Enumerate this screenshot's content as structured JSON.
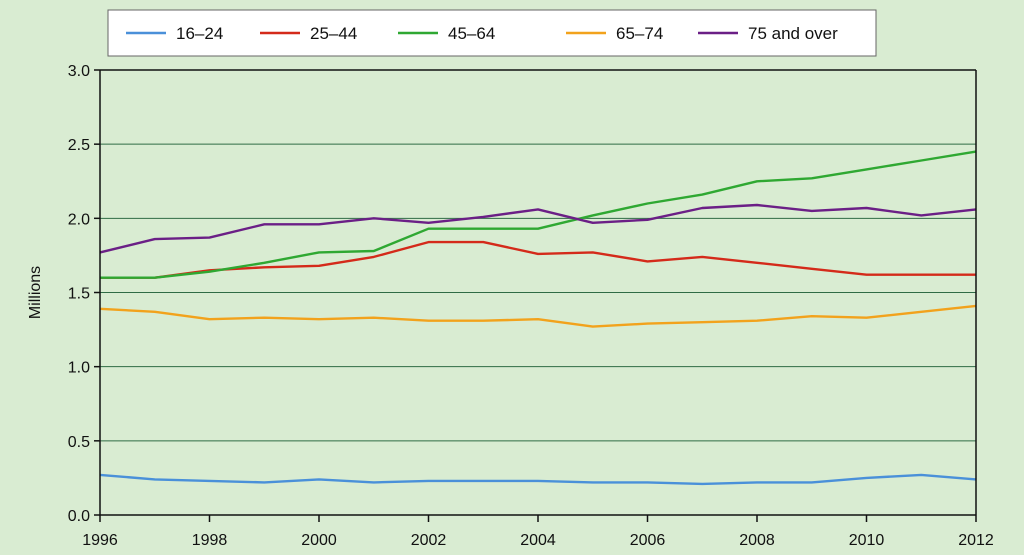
{
  "chart_data": {
    "type": "line",
    "ylabel": "Millions",
    "xlabel": "",
    "xlim": [
      1996,
      2012
    ],
    "ylim": [
      0,
      3.0
    ],
    "x_ticks": [
      "1996",
      "1998",
      "2000",
      "2002",
      "2004",
      "2006",
      "2008",
      "2010",
      "2012"
    ],
    "y_ticks": [
      "0.0",
      "0.5",
      "1.0",
      "1.5",
      "2.0",
      "2.5",
      "3.0"
    ],
    "grid": "horizontal",
    "legend_position": "top",
    "x": [
      1996,
      1997,
      1998,
      1999,
      2000,
      2001,
      2002,
      2003,
      2004,
      2005,
      2006,
      2007,
      2008,
      2009,
      2010,
      2011,
      2012
    ],
    "series": [
      {
        "name": "16–24",
        "color": "#4a90d9",
        "values": [
          0.27,
          0.24,
          0.23,
          0.22,
          0.24,
          0.22,
          0.23,
          0.23,
          0.23,
          0.22,
          0.22,
          0.21,
          0.22,
          0.22,
          0.25,
          0.27,
          0.24
        ]
      },
      {
        "name": "25–44",
        "color": "#d42a1a",
        "values": [
          1.6,
          1.6,
          1.65,
          1.67,
          1.68,
          1.74,
          1.84,
          1.84,
          1.76,
          1.77,
          1.71,
          1.74,
          1.7,
          1.66,
          1.62,
          1.62,
          1.62
        ]
      },
      {
        "name": "45–64",
        "color": "#2fa832",
        "values": [
          1.6,
          1.6,
          1.64,
          1.7,
          1.77,
          1.78,
          1.93,
          1.93,
          1.93,
          2.02,
          2.1,
          2.16,
          2.25,
          2.27,
          2.33,
          2.39,
          2.45
        ]
      },
      {
        "name": "65–74",
        "color": "#f2a21c",
        "values": [
          1.39,
          1.37,
          1.32,
          1.33,
          1.32,
          1.33,
          1.31,
          1.31,
          1.32,
          1.27,
          1.29,
          1.3,
          1.31,
          1.34,
          1.33,
          1.37,
          1.41
        ]
      },
      {
        "name": "75 and over",
        "color": "#6b1f86",
        "values": [
          1.77,
          1.86,
          1.87,
          1.96,
          1.96,
          2.0,
          1.97,
          2.01,
          2.06,
          1.97,
          1.99,
          2.07,
          2.09,
          2.05,
          2.07,
          2.02,
          2.06
        ]
      }
    ]
  }
}
